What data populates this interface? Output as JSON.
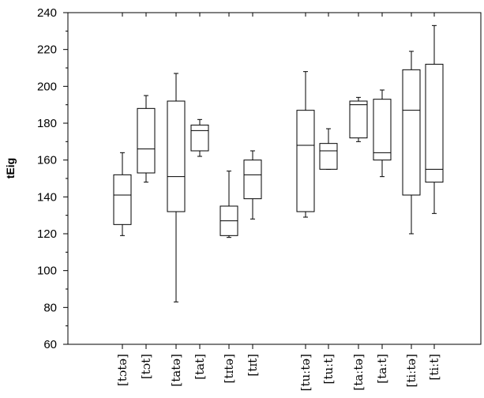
{
  "chart_data": {
    "type": "boxplot",
    "ylabel": "tEig",
    "ylim": [
      60,
      240
    ],
    "yticks": [
      60,
      80,
      100,
      120,
      140,
      160,
      180,
      200,
      220,
      240
    ],
    "grid": false,
    "categories": [
      "[tɔtə]",
      "[tɔt]",
      "[tatə]",
      "[tat]",
      "[tɪtə]",
      "[tɪt]",
      "[tuːtə]",
      "[tuːt]",
      "[taːtə]",
      "[taːt]",
      "[tiːtə]",
      "[tiːt]"
    ],
    "boxes": [
      {
        "label": "[tɔtə]",
        "min": 119,
        "q1": 125,
        "median": 141,
        "q3": 152,
        "max": 164
      },
      {
        "label": "[tɔt]",
        "min": 148,
        "q1": 153,
        "median": 166,
        "q3": 188,
        "max": 195
      },
      {
        "label": "[tatə]",
        "min": 83,
        "q1": 132,
        "median": 151,
        "q3": 192,
        "max": 207
      },
      {
        "label": "[tat]",
        "min": 162,
        "q1": 165,
        "median": 176,
        "q3": 179,
        "max": 182
      },
      {
        "label": "[tɪtə]",
        "min": 118,
        "q1": 119,
        "median": 127,
        "q3": 135,
        "max": 154
      },
      {
        "label": "[tɪt]",
        "min": 128,
        "q1": 139,
        "median": 152,
        "q3": 160,
        "max": 165
      },
      {
        "label": "[tuːtə]",
        "min": 129,
        "q1": 132,
        "median": 168,
        "q3": 187,
        "max": 208
      },
      {
        "label": "[tuːt]",
        "min": 155,
        "q1": 155,
        "median": 165,
        "q3": 169,
        "max": 177
      },
      {
        "label": "[taːtə]",
        "min": 170,
        "q1": 172,
        "median": 190,
        "q3": 192,
        "max": 194
      },
      {
        "label": "[taːt]",
        "min": 151,
        "q1": 160,
        "median": 164,
        "q3": 193,
        "max": 198
      },
      {
        "label": "[tiːtə]",
        "min": 120,
        "q1": 141,
        "median": 187,
        "q3": 209,
        "max": 219
      },
      {
        "label": "[tiːt]",
        "min": 131,
        "q1": 148,
        "median": 155,
        "q3": 212,
        "max": 233
      }
    ]
  }
}
